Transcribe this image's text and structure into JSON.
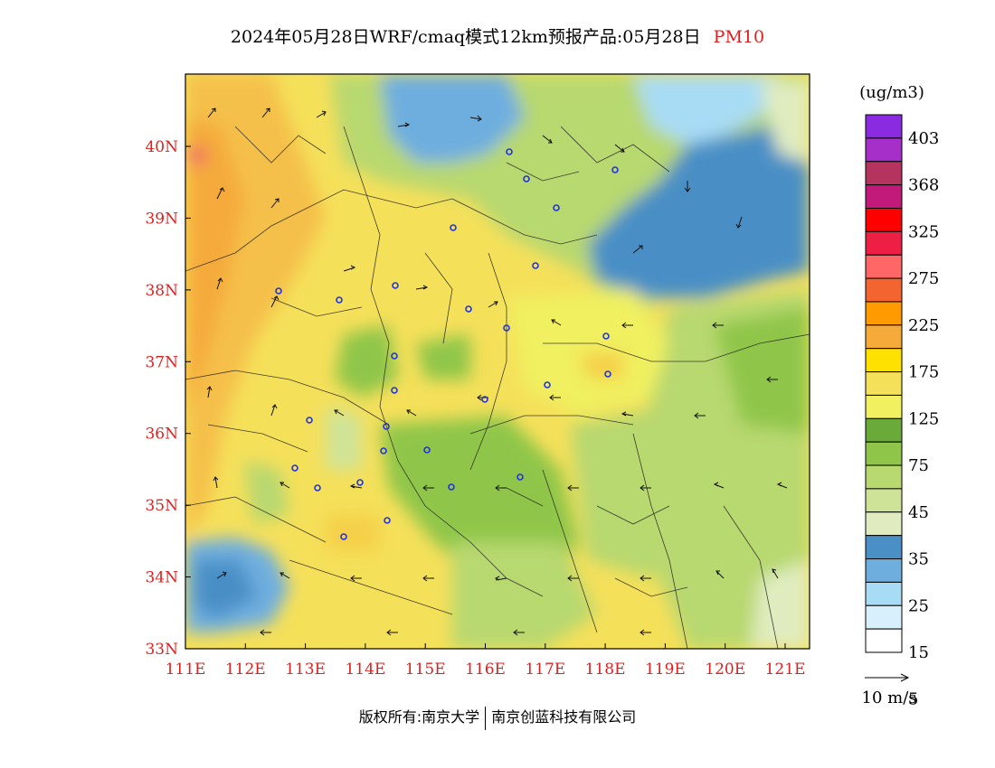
{
  "title": {
    "text": "2024年05月28日WRF/cmaq模式12km预报产品:05月28日",
    "pollutant": "PM10"
  },
  "map": {
    "lat_labels": [
      "40N",
      "39N",
      "38N",
      "37N",
      "36N",
      "35N",
      "34N",
      "33N"
    ],
    "lon_labels": [
      "111E",
      "112E",
      "113E",
      "114E",
      "115E",
      "116E",
      "117E",
      "118E",
      "119E",
      "120E",
      "121E"
    ],
    "lat_values": [
      40,
      39,
      38,
      37,
      36,
      35,
      34,
      33
    ],
    "lon_values": [
      111,
      112,
      113,
      114,
      115,
      116,
      117,
      118,
      119,
      120,
      121
    ]
  },
  "colorbar": {
    "unit": "(ug/m3)",
    "labels": [
      "403",
      "368",
      "325",
      "275",
      "225",
      "175",
      "125",
      "75",
      "45",
      "35",
      "25",
      "15",
      "5"
    ],
    "colors": [
      "#8a2be2",
      "#a72fc9",
      "#b4335f",
      "#c21a7a",
      "#ff0000",
      "#ee1f45",
      "#ff6666",
      "#f26430",
      "#ff9a00",
      "#f5aa3a",
      "#ffe100",
      "#f5e05a",
      "#f0f060",
      "#6aaa3a",
      "#8fc64a",
      "#b8d870",
      "#cfe398",
      "#e0ecbf",
      "#4a8fc6",
      "#6eaedf",
      "#a8dcf5",
      "#d7f0fb",
      "#ffffff"
    ]
  },
  "wind_legend": {
    "label": "10 m/s"
  },
  "copyright": {
    "left": "版权所有:南京大学",
    "right": "南京创蓝科技有限公司"
  }
}
